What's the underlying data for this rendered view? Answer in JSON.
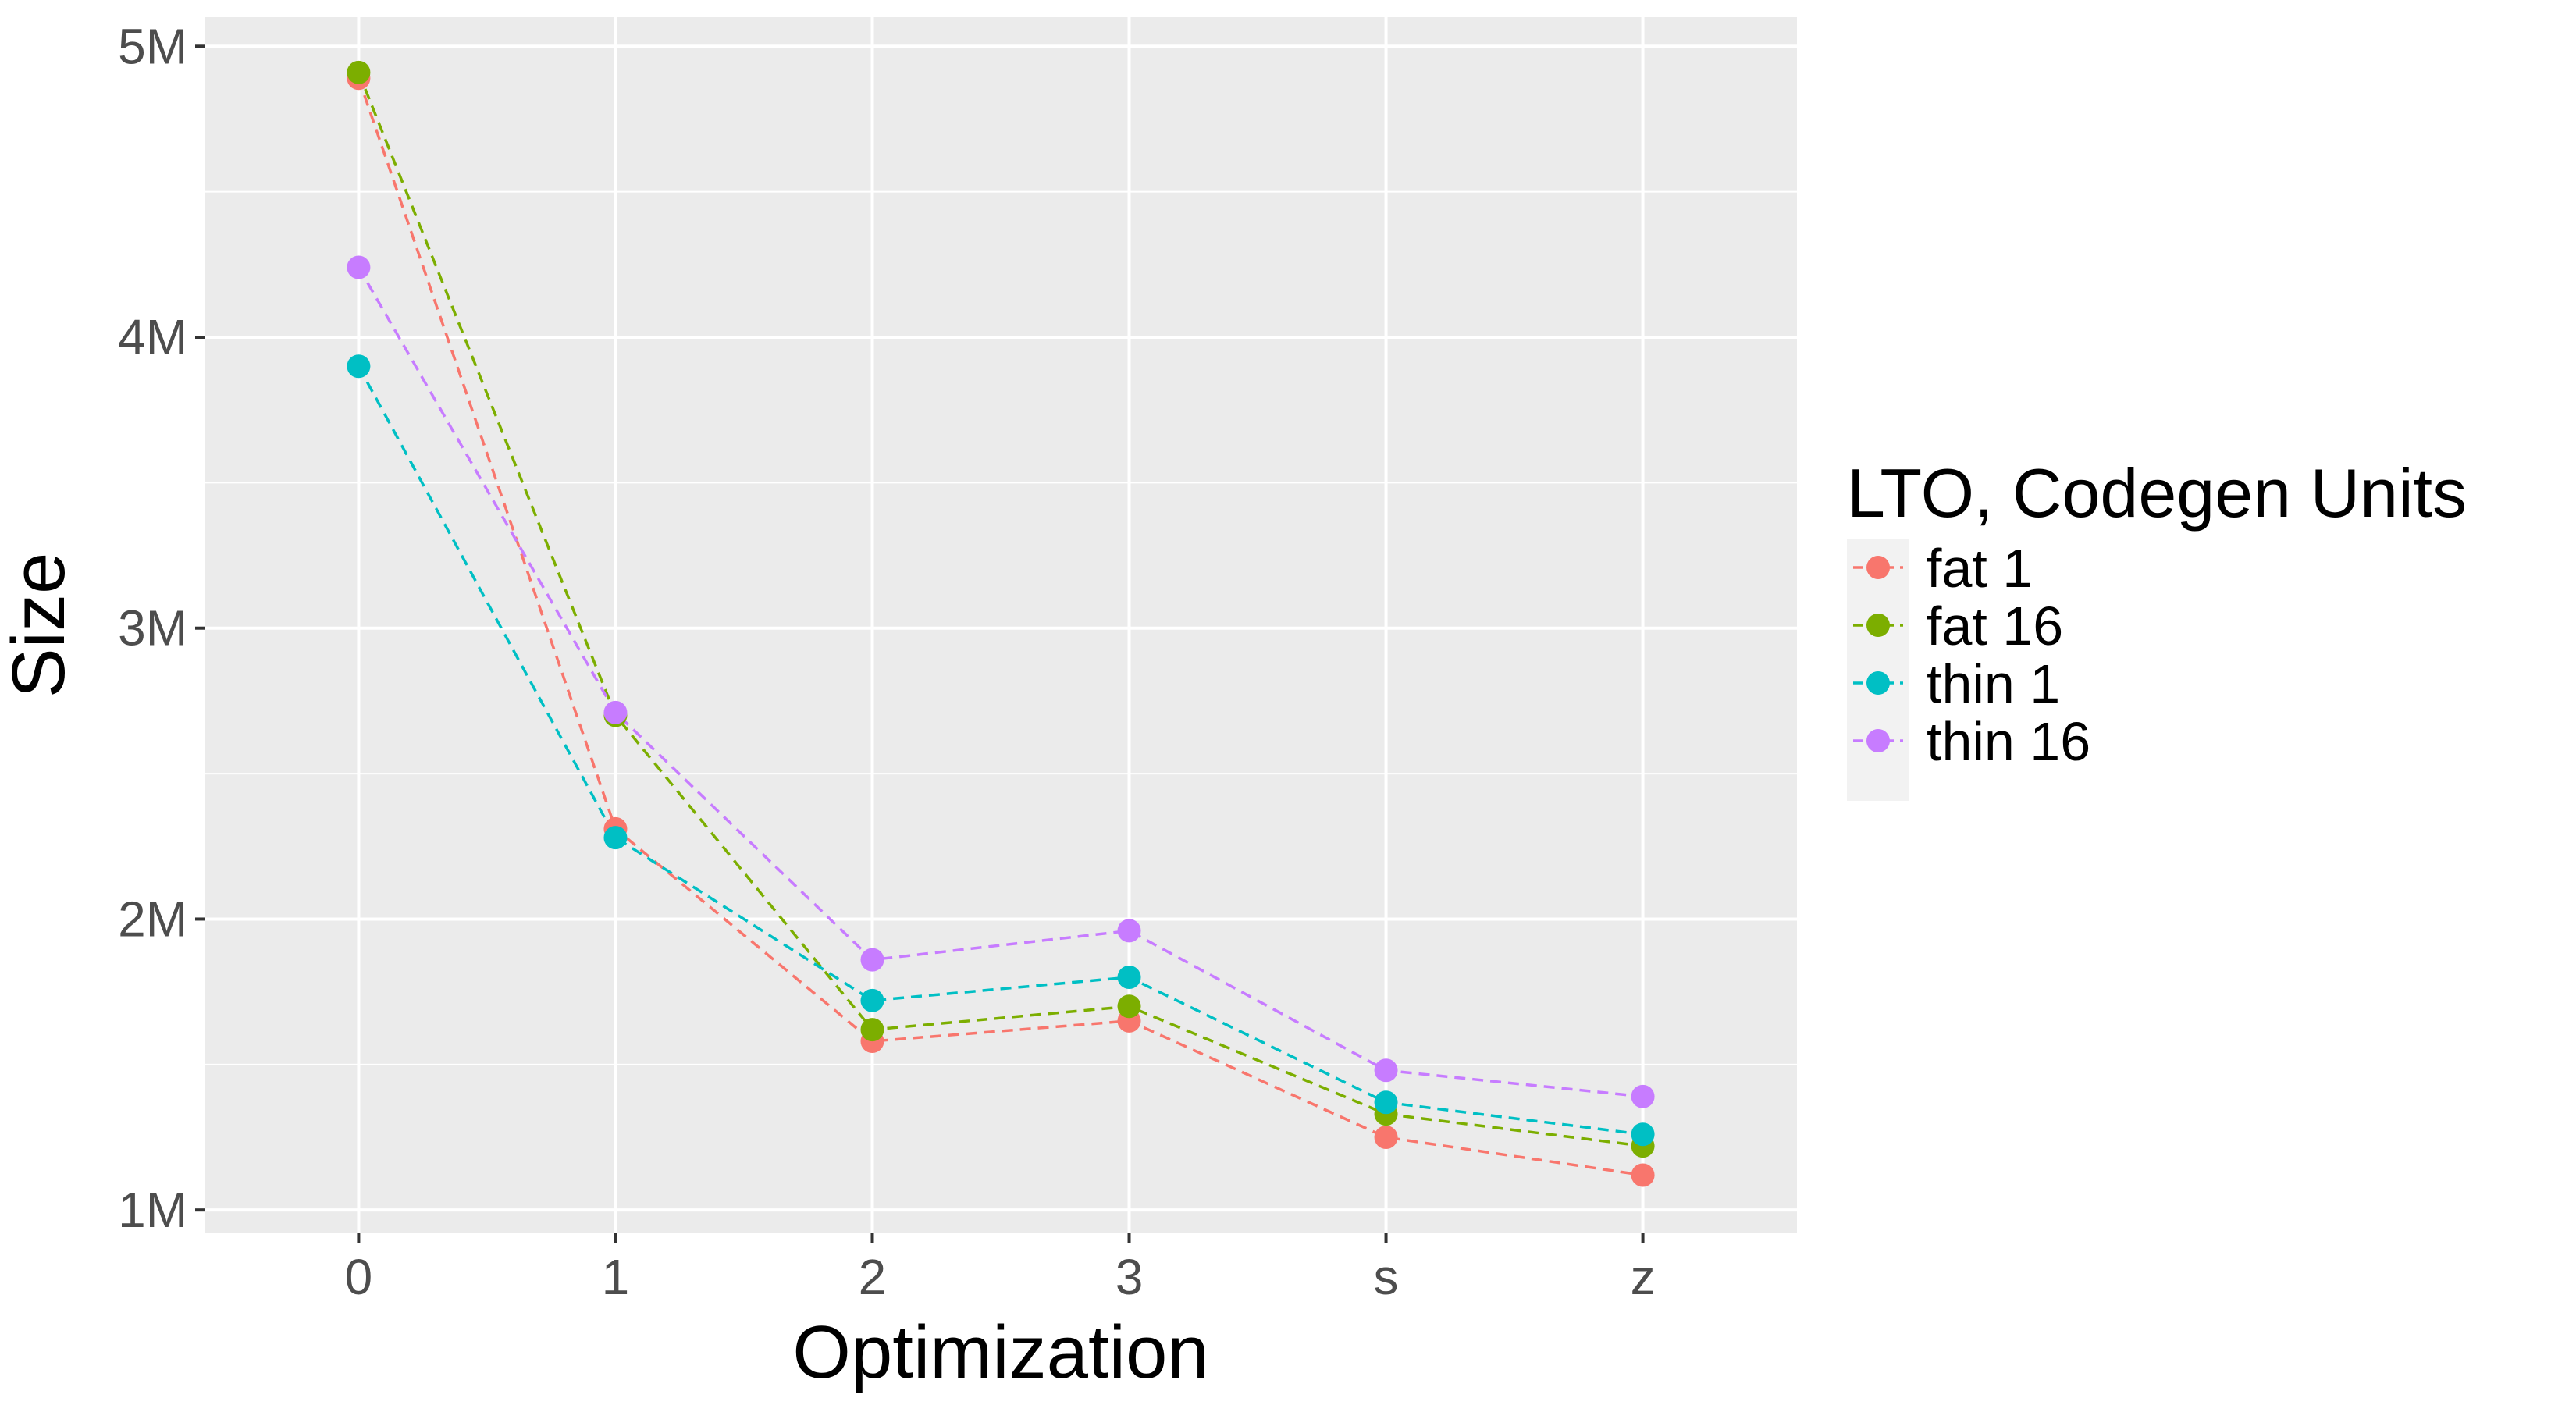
{
  "chart_data": {
    "type": "line",
    "xlabel": "Optimization",
    "ylabel": "Size",
    "categories": [
      "0",
      "1",
      "2",
      "3",
      "s",
      "z"
    ],
    "y_ticks": [
      {
        "value": 1000000,
        "label": "1M"
      },
      {
        "value": 2000000,
        "label": "2M"
      },
      {
        "value": 3000000,
        "label": "3M"
      },
      {
        "value": 4000000,
        "label": "4M"
      },
      {
        "value": 5000000,
        "label": "5M"
      }
    ],
    "ylim": [
      920000,
      5100000
    ],
    "grid": true,
    "legend": {
      "title": "LTO, Codegen Units",
      "placement": "right"
    },
    "series": [
      {
        "name": "fat 1",
        "color": "#F8766D",
        "values": [
          4890000,
          2310000,
          1580000,
          1650000,
          1250000,
          1120000
        ]
      },
      {
        "name": "fat 16",
        "color": "#7CAE00",
        "values": [
          4910000,
          2700000,
          1620000,
          1700000,
          1330000,
          1220000
        ]
      },
      {
        "name": "thin 1",
        "color": "#00BFC4",
        "values": [
          3900000,
          2280000,
          1720000,
          1800000,
          1370000,
          1260000
        ]
      },
      {
        "name": "thin 16",
        "color": "#C77CFF",
        "values": [
          4240000,
          2710000,
          1860000,
          1960000,
          1480000,
          1390000
        ]
      }
    ]
  }
}
